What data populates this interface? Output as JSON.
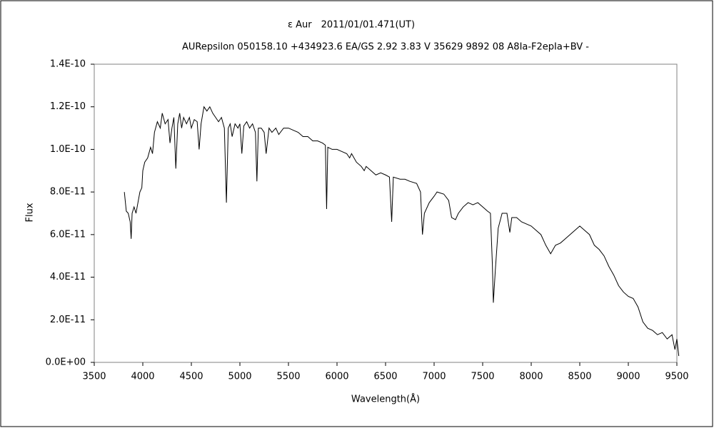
{
  "chart_data": {
    "type": "line",
    "title": "ε Aur　2011/01/01.471(UT)",
    "subtitle": "AURepsilon 050158.10 +434923.6 EA/GS 2.92 3.83 V 35629 9892 08 A8Ia-F2epIa+BV -",
    "x_label": "Wavelength(Å)",
    "y_label": "Flux",
    "xlim": [
      3500,
      9500
    ],
    "xticks": [
      3500,
      4000,
      4500,
      5000,
      5500,
      6000,
      6500,
      7000,
      7500,
      8000,
      8500,
      9000,
      9500
    ],
    "ylim": [
      0,
      1.4e-10
    ],
    "yticks": [
      {
        "value": 0,
        "label": "0.0E+00"
      },
      {
        "value": 2e-11,
        "label": "2.0E-11"
      },
      {
        "value": 4e-11,
        "label": "4.0E-11"
      },
      {
        "value": 6e-11,
        "label": "6.0E-11"
      },
      {
        "value": 8e-11,
        "label": "8.0E-11"
      },
      {
        "value": 1e-10,
        "label": "1.0E-10"
      },
      {
        "value": 1.2e-10,
        "label": "1.2E-10"
      },
      {
        "value": 1.4e-10,
        "label": "1.4E-10"
      }
    ],
    "grid": false,
    "series": [
      {
        "color": "#000000",
        "x": [
          3810,
          3830,
          3850,
          3870,
          3880,
          3890,
          3910,
          3930,
          3950,
          3970,
          3990,
          4000,
          4020,
          4050,
          4080,
          4100,
          4120,
          4150,
          4180,
          4200,
          4230,
          4260,
          4280,
          4300,
          4320,
          4340,
          4360,
          4380,
          4400,
          4420,
          4450,
          4480,
          4500,
          4530,
          4560,
          4580,
          4600,
          4630,
          4660,
          4690,
          4720,
          4750,
          4780,
          4810,
          4840,
          4861,
          4880,
          4900,
          4920,
          4950,
          4980,
          5000,
          5020,
          5040,
          5070,
          5100,
          5130,
          5160,
          5175,
          5190,
          5220,
          5250,
          5270,
          5300,
          5330,
          5370,
          5400,
          5450,
          5500,
          5550,
          5600,
          5650,
          5700,
          5750,
          5800,
          5850,
          5880,
          5893,
          5905,
          5950,
          6000,
          6050,
          6100,
          6130,
          6150,
          6200,
          6250,
          6280,
          6300,
          6350,
          6400,
          6450,
          6500,
          6540,
          6563,
          6580,
          6650,
          6700,
          6750,
          6820,
          6860,
          6880,
          6900,
          6950,
          7000,
          7030,
          7100,
          7150,
          7180,
          7220,
          7250,
          7300,
          7350,
          7400,
          7450,
          7500,
          7550,
          7580,
          7600,
          7610,
          7630,
          7660,
          7700,
          7750,
          7780,
          7800,
          7850,
          7900,
          7950,
          8000,
          8050,
          8100,
          8150,
          8200,
          8250,
          8300,
          8350,
          8400,
          8450,
          8500,
          8550,
          8600,
          8650,
          8700,
          8750,
          8800,
          8850,
          8900,
          8950,
          9000,
          9050,
          9100,
          9150,
          9200,
          9250,
          9300,
          9350,
          9400,
          9450,
          9480,
          9500,
          9520
        ],
        "values": [
          8e-11,
          7.1e-11,
          7e-11,
          6.6e-11,
          5.8e-11,
          7e-11,
          7.3e-11,
          7e-11,
          7.5e-11,
          8e-11,
          8.2e-11,
          9e-11,
          9.4e-11,
          9.6e-11,
          1.01e-10,
          9.8e-11,
          1.08e-10,
          1.13e-10,
          1.1e-10,
          1.17e-10,
          1.12e-10,
          1.14e-10,
          1.03e-10,
          1.1e-10,
          1.15e-10,
          9.1e-11,
          1.12e-10,
          1.17e-10,
          1.1e-10,
          1.15e-10,
          1.12e-10,
          1.15e-10,
          1.1e-10,
          1.14e-10,
          1.13e-10,
          1e-10,
          1.12e-10,
          1.2e-10,
          1.18e-10,
          1.2e-10,
          1.17e-10,
          1.15e-10,
          1.13e-10,
          1.15e-10,
          1.1e-10,
          7.5e-11,
          1.1e-10,
          1.12e-10,
          1.06e-10,
          1.12e-10,
          1.1e-10,
          1.12e-10,
          9.8e-11,
          1.11e-10,
          1.13e-10,
          1.1e-10,
          1.12e-10,
          1.08e-10,
          8.5e-11,
          1.1e-10,
          1.1e-10,
          1.08e-10,
          9.8e-11,
          1.1e-10,
          1.08e-10,
          1.1e-10,
          1.07e-10,
          1.1e-10,
          1.1e-10,
          1.09e-10,
          1.08e-10,
          1.06e-10,
          1.06e-10,
          1.04e-10,
          1.04e-10,
          1.03e-10,
          1.02e-10,
          7.2e-11,
          1.01e-10,
          1e-10,
          1e-10,
          9.9e-11,
          9.8e-11,
          9.6e-11,
          9.8e-11,
          9.4e-11,
          9.2e-11,
          9e-11,
          9.2e-11,
          9e-11,
          8.8e-11,
          8.9e-11,
          8.8e-11,
          8.7e-11,
          6.6e-11,
          8.7e-11,
          8.6e-11,
          8.6e-11,
          8.5e-11,
          8.4e-11,
          8e-11,
          6e-11,
          7e-11,
          7.5e-11,
          7.8e-11,
          8e-11,
          7.9e-11,
          7.6e-11,
          6.8e-11,
          6.7e-11,
          7e-11,
          7.3e-11,
          7.5e-11,
          7.4e-11,
          7.5e-11,
          7.3e-11,
          7.1e-11,
          7e-11,
          4.6e-11,
          2.8e-11,
          4.3e-11,
          6.3e-11,
          7e-11,
          7e-11,
          6.1e-11,
          6.8e-11,
          6.8e-11,
          6.6e-11,
          6.5e-11,
          6.4e-11,
          6.2e-11,
          6e-11,
          5.5e-11,
          5.1e-11,
          5.5e-11,
          5.6e-11,
          5.8e-11,
          6e-11,
          6.2e-11,
          6.4e-11,
          6.2e-11,
          6e-11,
          5.5e-11,
          5.3e-11,
          5e-11,
          4.5e-11,
          4.1e-11,
          3.6e-11,
          3.3e-11,
          3.1e-11,
          3e-11,
          2.6e-11,
          1.9e-11,
          1.6e-11,
          1.5e-11,
          1.3e-11,
          1.4e-11,
          1.1e-11,
          1.3e-11,
          6e-12,
          1.1e-11,
          3e-12
        ]
      }
    ]
  }
}
